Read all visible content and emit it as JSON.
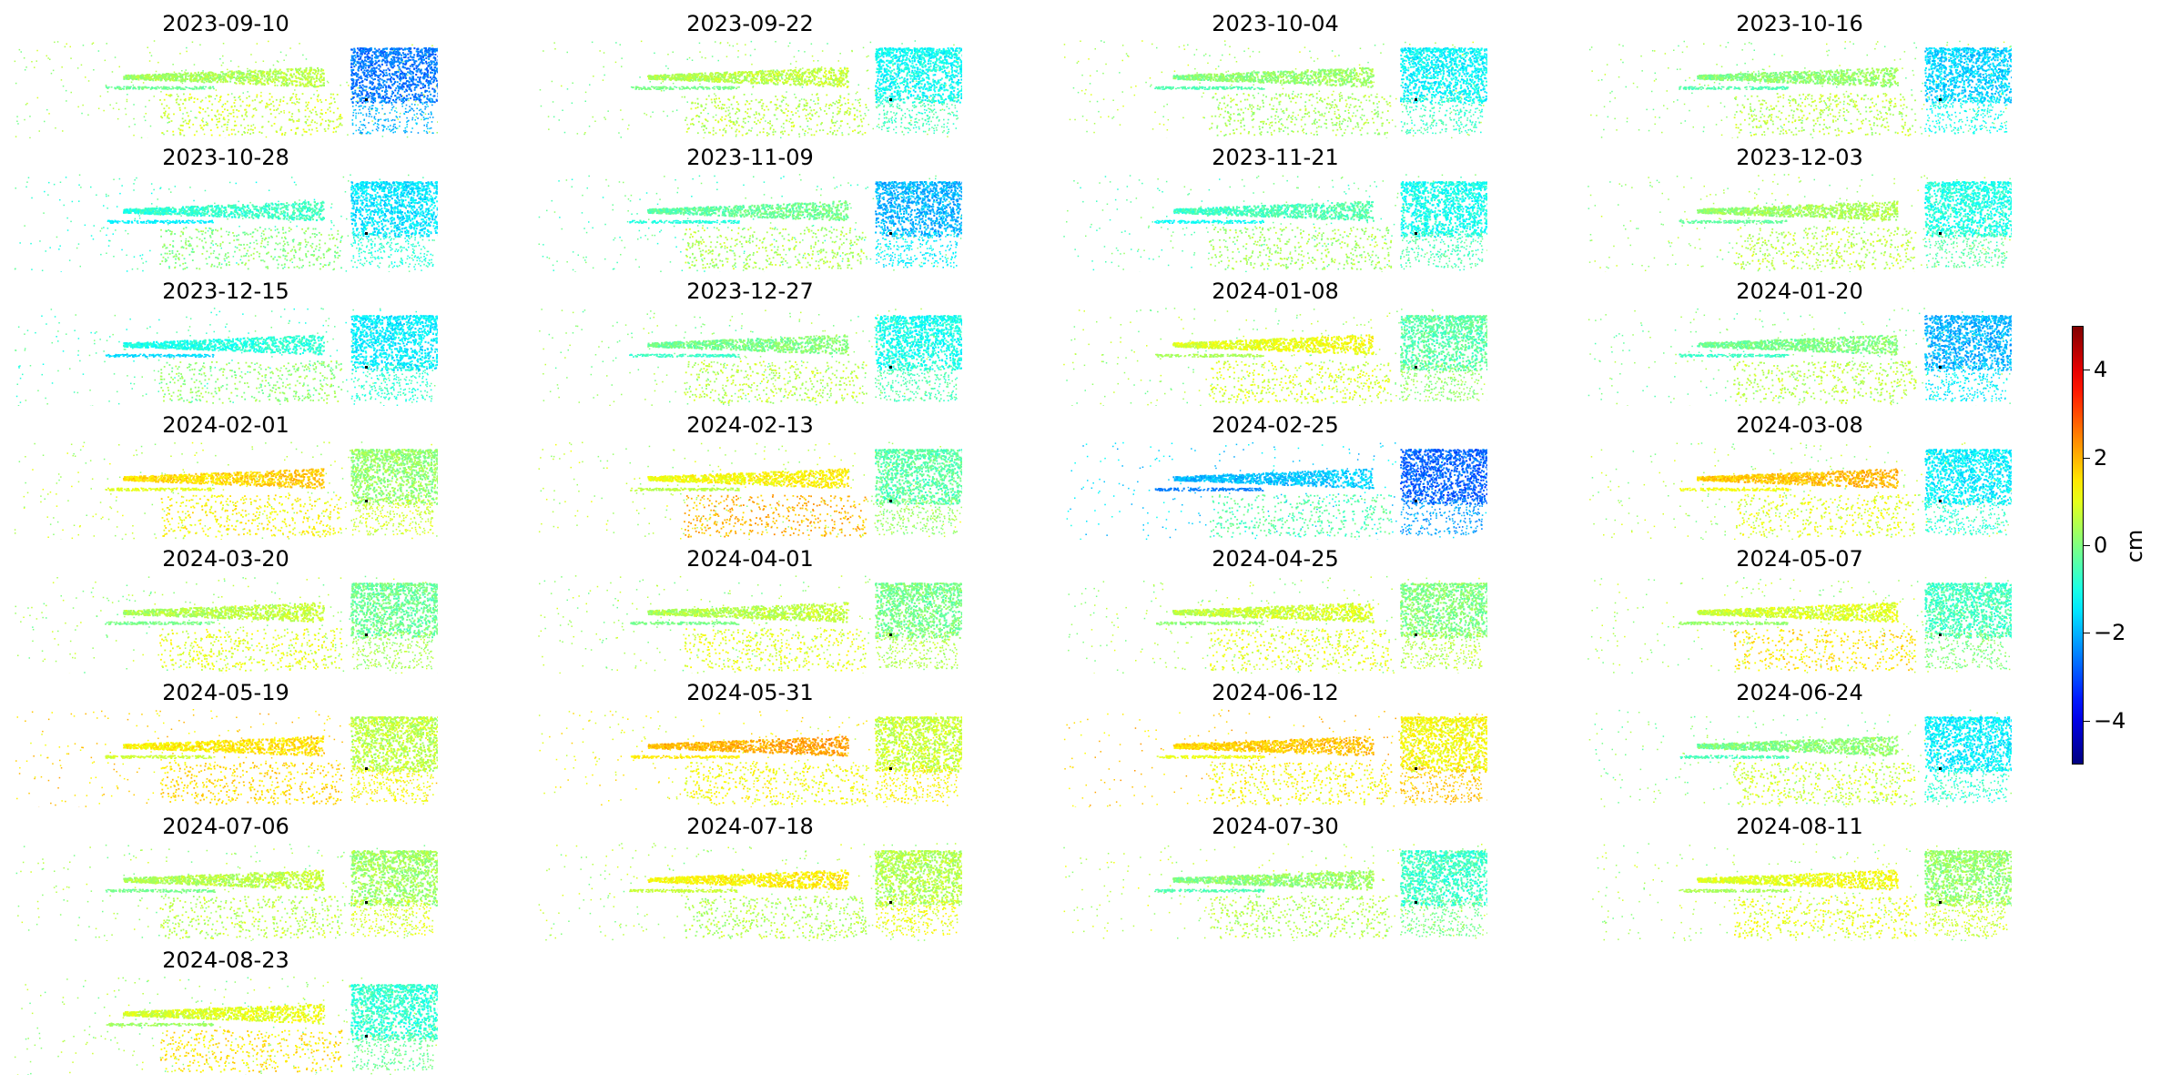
{
  "chart_data": {
    "type": "heatmap",
    "description_note": "",
    "panel_titles": [
      "2023-09-10",
      "2023-09-22",
      "2023-10-04",
      "2023-10-16",
      "2023-10-28",
      "2023-11-09",
      "2023-11-21",
      "2023-12-03",
      "2023-12-15",
      "2023-12-27",
      "2024-01-08",
      "2024-01-20",
      "2024-02-01",
      "2024-02-13",
      "2024-02-25",
      "2024-03-08",
      "2024-03-20",
      "2024-04-01",
      "2024-04-25",
      "2024-05-07",
      "2024-05-19",
      "2024-05-31",
      "2024-06-12",
      "2024-06-24",
      "2024-07-06",
      "2024-07-18",
      "2024-07-30",
      "2024-08-11",
      "2024-08-23"
    ],
    "panel_values": [
      {
        "west": 0.3,
        "center": 0.6,
        "south": 0.8,
        "east": -2.6
      },
      {
        "west": 0.2,
        "center": 0.7,
        "south": 0.6,
        "east": -1.2
      },
      {
        "west": 0.4,
        "center": 0.3,
        "south": 0.4,
        "east": -1.3
      },
      {
        "west": 0.2,
        "center": 0.3,
        "south": 0.6,
        "east": -1.7
      },
      {
        "west": -0.6,
        "center": -0.6,
        "south": 0.1,
        "east": -1.5
      },
      {
        "west": -0.4,
        "center": -0.1,
        "south": 0.5,
        "east": -2.0
      },
      {
        "west": -0.3,
        "center": -0.4,
        "south": 0.4,
        "east": -1.1
      },
      {
        "west": 0.3,
        "center": 0.5,
        "south": 0.6,
        "east": -1.0
      },
      {
        "west": -0.5,
        "center": -0.8,
        "south": 0.2,
        "east": -1.4
      },
      {
        "west": 0.1,
        "center": 0.1,
        "south": 0.6,
        "east": -1.1
      },
      {
        "west": 0.3,
        "center": 1.2,
        "south": 0.9,
        "east": -0.4
      },
      {
        "west": 0.0,
        "center": 0.1,
        "south": 0.6,
        "east": -2.0
      },
      {
        "west": 0.6,
        "center": 1.8,
        "south": 1.3,
        "east": 0.2
      },
      {
        "west": 0.6,
        "center": 1.4,
        "south": 2.0,
        "east": -0.4
      },
      {
        "west": -1.6,
        "center": -1.7,
        "south": -0.4,
        "east": -2.8
      },
      {
        "west": 0.4,
        "center": 2.0,
        "south": 1.0,
        "east": -1.4
      },
      {
        "west": 0.3,
        "center": 0.7,
        "south": 1.0,
        "east": -0.2
      },
      {
        "west": 0.3,
        "center": 0.7,
        "south": 1.0,
        "east": -0.1
      },
      {
        "west": 0.4,
        "center": 0.9,
        "south": 1.0,
        "east": 0.0
      },
      {
        "west": 0.4,
        "center": 1.0,
        "south": 1.5,
        "east": -0.6
      },
      {
        "west": 1.6,
        "center": 1.6,
        "south": 1.6,
        "east": 0.6
      },
      {
        "west": 1.2,
        "center": 2.2,
        "south": 1.2,
        "east": 0.7
      },
      {
        "west": 1.7,
        "center": 1.9,
        "south": 1.2,
        "east": 1.2
      },
      {
        "west": 0.1,
        "center": 0.2,
        "south": 0.8,
        "east": -1.4
      },
      {
        "west": 0.3,
        "center": 0.7,
        "south": 0.6,
        "east": 0.3
      },
      {
        "west": 0.4,
        "center": 1.5,
        "south": 0.5,
        "east": 0.5
      },
      {
        "west": 0.6,
        "center": 0.3,
        "south": 0.5,
        "east": -0.7
      },
      {
        "west": 0.4,
        "center": 1.2,
        "south": 1.0,
        "east": 0.2
      },
      {
        "west": 0.3,
        "center": 1.1,
        "south": 1.5,
        "east": -0.8
      }
    ],
    "colorbar": {
      "colormap": "jet",
      "vmin": -5,
      "vmax": 5,
      "ticks": [
        -4,
        -2,
        0,
        2,
        4
      ],
      "tick_labels": [
        "−4",
        "−2",
        "0",
        "2",
        "4"
      ],
      "label": "cm"
    },
    "reference_point": true
  }
}
